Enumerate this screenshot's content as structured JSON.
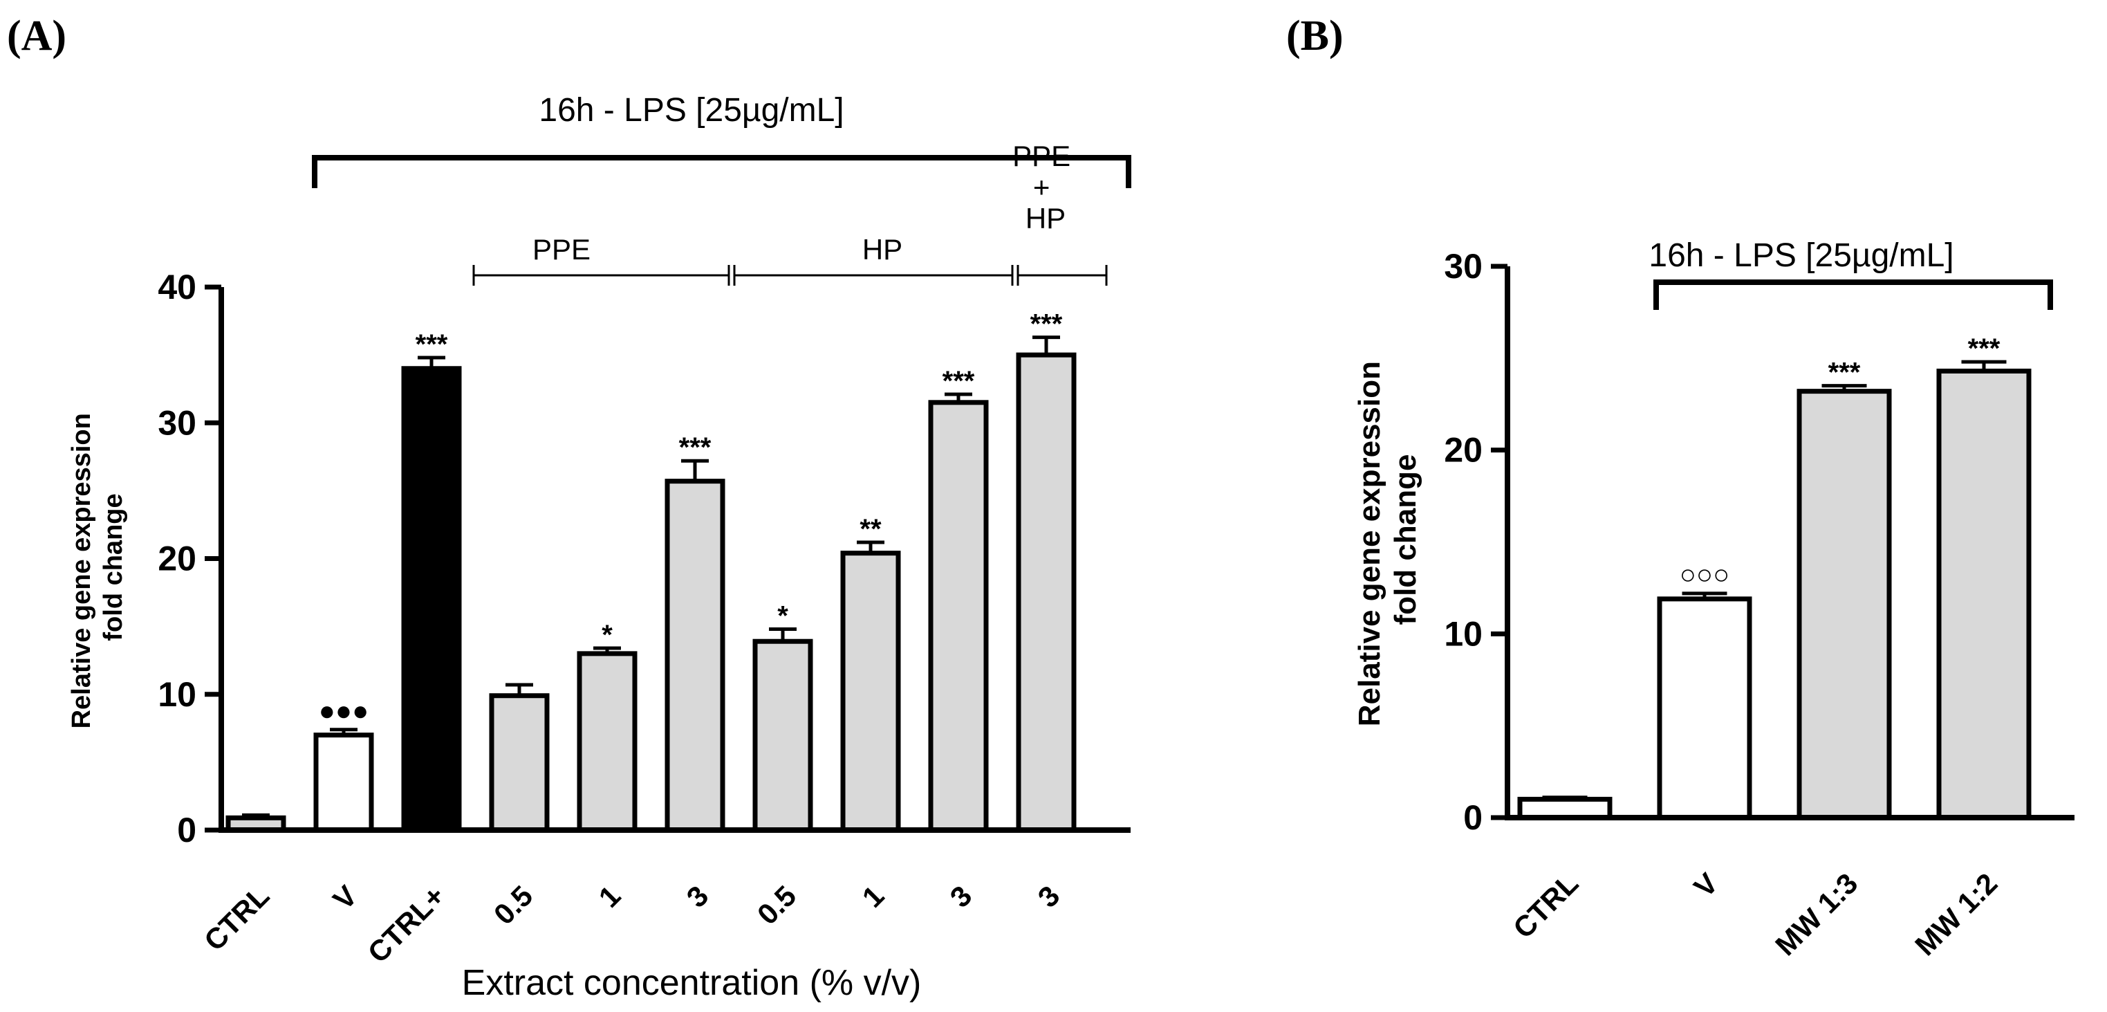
{
  "chart_data": [
    {
      "type": "bar",
      "panel_label": "(A)",
      "treatment_label": "16h - LPS [25µg/mL]",
      "groups": [
        "PPE",
        "HP",
        "PPE\n+\nHP"
      ],
      "ylabel": "Relative gene expression\nfold change",
      "xlabel": "Extract concentration (% v/v)",
      "ylim": [
        0,
        40
      ],
      "yticks": [
        0,
        10,
        20,
        30,
        40
      ],
      "categories": [
        "CTRL",
        "V",
        "CTRL+",
        "0.5",
        "1",
        "3",
        "0.5",
        "1",
        "3",
        "3"
      ],
      "values": [
        0.9,
        7.0,
        34.0,
        9.9,
        13.0,
        25.7,
        13.9,
        20.4,
        31.5,
        35.0
      ],
      "errors": [
        0.2,
        0.4,
        0.8,
        0.8,
        0.4,
        1.5,
        0.9,
        0.8,
        0.6,
        1.3
      ],
      "fills": [
        "#d9d9d9",
        "#ffffff",
        "#000000",
        "#d9d9d9",
        "#d9d9d9",
        "#d9d9d9",
        "#d9d9d9",
        "#d9d9d9",
        "#d9d9d9",
        "#d9d9d9"
      ],
      "annotations": [
        "",
        "●●●",
        "***",
        "",
        "*",
        "***",
        "*",
        "**",
        "***",
        "***"
      ]
    },
    {
      "type": "bar",
      "panel_label": "(B)",
      "treatment_label": "16h - LPS [25µg/mL]",
      "ylabel": "Relative gene expression\nfold change",
      "ylim": [
        0,
        30
      ],
      "yticks": [
        0,
        10,
        20,
        30
      ],
      "categories": [
        "CTRL",
        "V",
        "MW 1:3",
        "MW 1:2"
      ],
      "values": [
        1.0,
        11.9,
        23.2,
        24.3
      ],
      "errors": [
        0.1,
        0.3,
        0.3,
        0.5
      ],
      "fills": [
        "#ffffff",
        "#ffffff",
        "#d9d9d9",
        "#d9d9d9"
      ],
      "annotations": [
        "",
        "○○○",
        "***",
        "***"
      ]
    }
  ]
}
